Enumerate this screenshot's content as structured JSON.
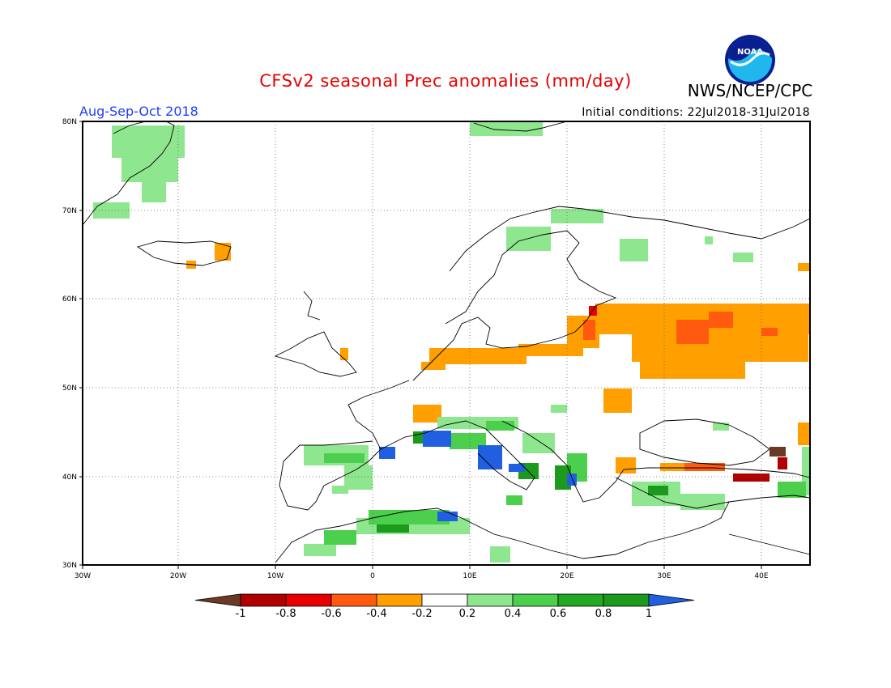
{
  "title": "CFSv2 seasonal Prec anomalies (mm/day)",
  "agency": "NWS/NCEP/CPC",
  "logo_text": "NOAA",
  "period": "Aug-Sep-Oct 2018",
  "initial_conditions": "Initial conditions: 22Jul2018-31Jul2018",
  "map": {
    "lon_range": [
      -30,
      45
    ],
    "lat_range": [
      30,
      80
    ],
    "lon_ticks": [
      "30W",
      "20W",
      "10W",
      "0",
      "10E",
      "20E",
      "30E",
      "40E"
    ],
    "lat_ticks": [
      "80N",
      "70N",
      "60N",
      "50N",
      "40N",
      "30N"
    ],
    "grid": "dotted"
  },
  "colorbar": {
    "labels": [
      "-1",
      "-0.8",
      "-0.6",
      "-0.4",
      "-0.2",
      "0.2",
      "0.4",
      "0.6",
      "0.8",
      "1"
    ],
    "colors": [
      "#6b3a26",
      "#b00000",
      "#e80000",
      "#ff5a0f",
      "#ff9f00",
      "#ffffff",
      "#8ee68e",
      "#4ccf4c",
      "#23a823",
      "#1b9a1b",
      "#2060e0"
    ]
  },
  "anomaly_regions": [
    {
      "name": "Greenland",
      "level": "0.2 to 0.4"
    },
    {
      "name": "Northern Scandinavia",
      "level": "0.2 to 0.4"
    },
    {
      "name": "Baltic and Western Russia",
      "level": "-0.4 to -0.2"
    },
    {
      "name": "Central Russia",
      "level": "-0.6 to -0.4"
    },
    {
      "name": "Northern Germany / Poland",
      "level": "-0.4 to -0.2"
    },
    {
      "name": "Iberia",
      "level": "0.2 to 0.6"
    },
    {
      "name": "Northern Africa",
      "level": "0.4 to 0.8"
    },
    {
      "name": "Italy / Tyrrhenian Sea",
      "level": "0.6 to >1"
    },
    {
      "name": "Balkans / Greece",
      "level": "0.4 to >1"
    },
    {
      "name": "Turkey",
      "level": "0.2 to 0.6"
    },
    {
      "name": "Black Sea south coast",
      "level": "-0.6 to -0.2"
    },
    {
      "name": "Caucasus",
      "level": "-1 to -0.6"
    }
  ]
}
